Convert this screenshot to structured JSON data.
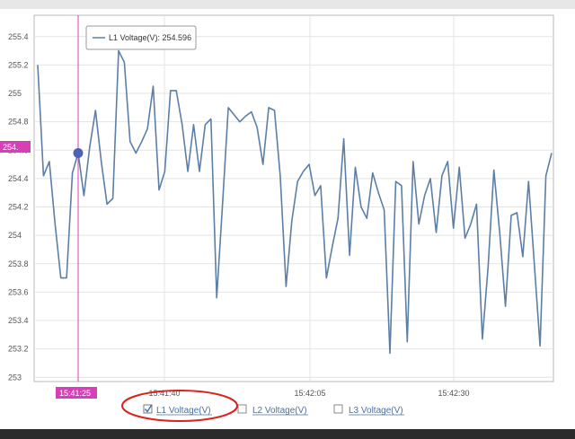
{
  "chart_data": {
    "type": "line",
    "ylim": [
      253,
      255.5
    ],
    "y_ticks": [
      "255.4",
      "255.2",
      "255",
      "254.8",
      "254.6",
      "254.4",
      "254.2",
      "254",
      "253.8",
      "253.6",
      "253.4",
      "253.2",
      "253"
    ],
    "x_ticks": [
      "15:41:40",
      "15:42:05",
      "15:42:30"
    ],
    "grid": true,
    "series": [
      {
        "name": "L1 Voltage(V)",
        "color": "#5b7fa6",
        "values": [
          255.2,
          254.42,
          254.52,
          254.08,
          253.7,
          253.7,
          254.44,
          254.58,
          254.28,
          254.62,
          254.88,
          254.52,
          254.22,
          254.26,
          255.3,
          255.22,
          254.66,
          254.58,
          254.66,
          254.75,
          255.05,
          254.32,
          254.45,
          255.02,
          255.02,
          254.78,
          254.45,
          254.78,
          254.45,
          254.78,
          254.82,
          253.56,
          254.22,
          254.9,
          254.85,
          254.8,
          254.84,
          254.87,
          254.76,
          254.5,
          254.9,
          254.88,
          254.42,
          253.64,
          254.1,
          254.38,
          254.45,
          254.5,
          254.28,
          254.35,
          253.7,
          253.92,
          254.12,
          254.68,
          253.86,
          254.48,
          254.2,
          254.12,
          254.44,
          254.3,
          254.18,
          253.17,
          254.38,
          254.35,
          253.25,
          254.52,
          254.08,
          254.28,
          254.4,
          254.02,
          254.42,
          254.52,
          254.05,
          254.48,
          253.98,
          254.08,
          254.22,
          253.27,
          253.78,
          254.46,
          254.02,
          253.5,
          254.14,
          254.16,
          253.85,
          254.38,
          253.8,
          253.22,
          254.42,
          254.58
        ]
      }
    ],
    "legend": [
      "L1 Voltage(V)",
      "L2 Voltage(V)",
      "L3 Voltage(V)"
    ],
    "legend_checked": [
      true,
      false,
      false
    ],
    "legend_placement": "bottom-center",
    "tooltip": "L1 Voltage(V): 254.596",
    "cursor_y_label": "254.",
    "cursor_x_label": "15:41:25",
    "cursor_index": 7,
    "colors": {
      "line": "#5b7fa6",
      "cursor": "#d63fb8",
      "marker": "#4a63b5",
      "annotation": "#d9231d",
      "legend_text": "#4a6fa5"
    }
  }
}
